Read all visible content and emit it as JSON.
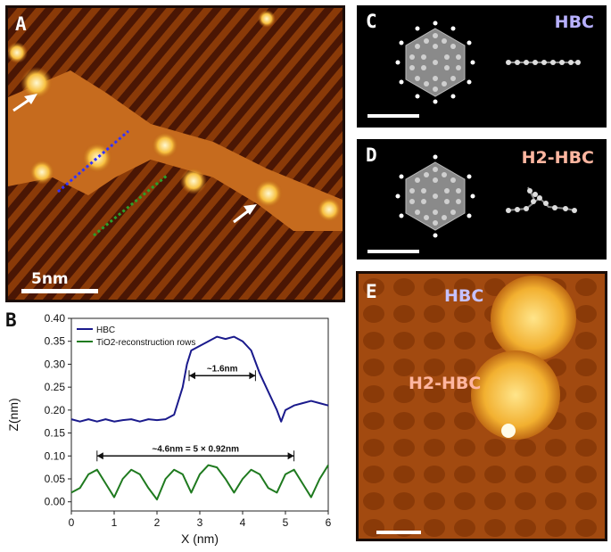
{
  "panels": {
    "a": {
      "letter": "A",
      "scale_label": "5nm"
    },
    "b": {
      "letter": "B"
    },
    "c": {
      "letter": "C",
      "molecule": "HBC",
      "label_color": "#b7b0ff"
    },
    "d": {
      "letter": "D",
      "molecule": "H2-HBC",
      "label_color": "#ffb6a0"
    },
    "e": {
      "letter": "E",
      "label_top": "HBC",
      "label_mid": "H2-HBC",
      "label_top_color": "#c6c2ff",
      "label_mid_color": "#ffb6a0"
    }
  },
  "colors": {
    "hbc_line": "#1a1a8c",
    "tio2_line": "#1f7a1f"
  },
  "chart_data": {
    "type": "line",
    "xlabel": "X (nm)",
    "ylabel": "Z(nm)",
    "xlim": [
      0,
      6
    ],
    "ylim": [
      -0.02,
      0.4
    ],
    "xticks": [
      "0",
      "1",
      "2",
      "3",
      "4",
      "5",
      "6"
    ],
    "yticks": [
      "0.00",
      "0.05",
      "0.10",
      "0.15",
      "0.20",
      "0.25",
      "0.30",
      "0.35",
      "0.40"
    ],
    "x": [
      0.0,
      0.2,
      0.4,
      0.6,
      0.8,
      1.0,
      1.2,
      1.4,
      1.6,
      1.8,
      2.0,
      2.2,
      2.4,
      2.6,
      2.7,
      2.8,
      3.0,
      3.2,
      3.4,
      3.6,
      3.8,
      4.0,
      4.2,
      4.4,
      4.6,
      4.8,
      4.9,
      5.0,
      5.2,
      5.4,
      5.6,
      5.8,
      6.0
    ],
    "series": [
      {
        "name": "HBC",
        "color": "#1a1a8c",
        "values": [
          0.18,
          0.175,
          0.18,
          0.175,
          0.18,
          0.175,
          0.178,
          0.18,
          0.175,
          0.18,
          0.178,
          0.18,
          0.19,
          0.25,
          0.3,
          0.33,
          0.34,
          0.35,
          0.36,
          0.355,
          0.36,
          0.35,
          0.33,
          0.28,
          0.24,
          0.2,
          0.175,
          0.2,
          0.21,
          0.215,
          0.22,
          0.215,
          0.21
        ]
      },
      {
        "name": "TiO2-reconstruction rows",
        "color": "#1f7a1f",
        "values": [
          0.02,
          0.03,
          0.06,
          0.07,
          0.04,
          0.01,
          0.05,
          0.07,
          0.06,
          0.03,
          0.005,
          0.05,
          0.07,
          0.06,
          0.04,
          0.02,
          0.06,
          0.08,
          0.075,
          0.05,
          0.02,
          0.05,
          0.07,
          0.06,
          0.03,
          0.02,
          0.04,
          0.06,
          0.07,
          0.04,
          0.01,
          0.05,
          0.08
        ]
      }
    ],
    "legend": {
      "position": "top-left",
      "entries": [
        "HBC",
        "TiO2-reconstruction rows"
      ]
    },
    "annotations": [
      {
        "text": "~1.6nm",
        "x_from": 2.75,
        "x_to": 4.3,
        "y": 0.275
      },
      {
        "text": "~4.6nm = 5 × 0.92nm",
        "x_from": 0.6,
        "x_to": 5.2,
        "y": 0.1
      }
    ]
  }
}
